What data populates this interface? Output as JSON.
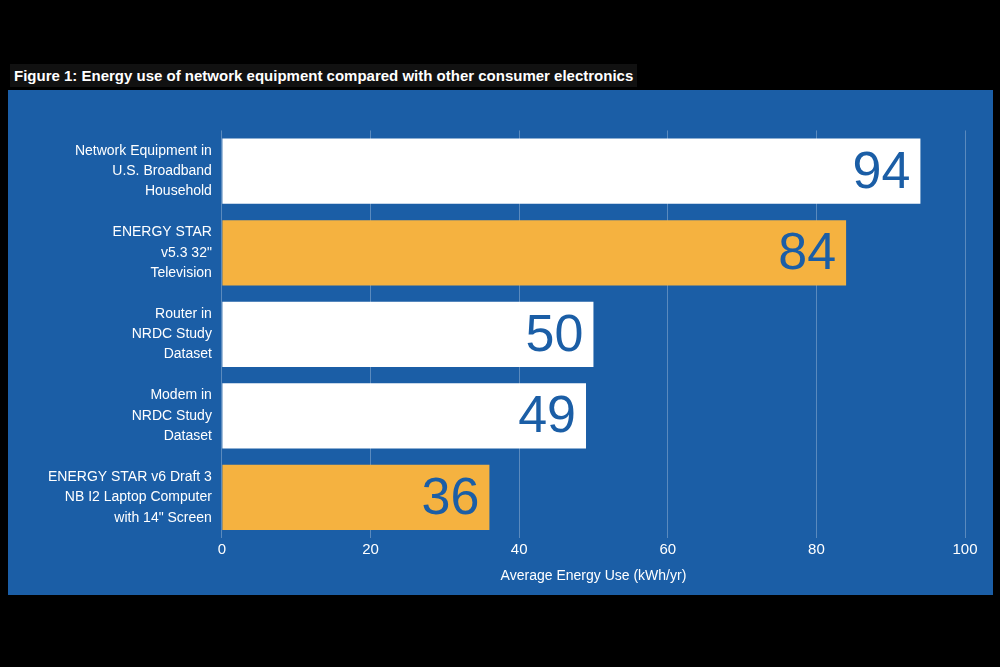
{
  "chart_data": {
    "type": "bar",
    "title": "Figure 1: Energy use of network equipment compared with other consumer electronics",
    "orientation": "horizontal",
    "categories": [
      [
        "Network Equipment in",
        "U.S. Broadband",
        "Household"
      ],
      [
        "ENERGY STAR",
        "v5.3 32\"",
        "Television"
      ],
      [
        "Router in",
        "NRDC Study",
        "Dataset"
      ],
      [
        "Modem in",
        "NRDC Study",
        "Dataset"
      ],
      [
        "ENERGY STAR v6 Draft 3",
        "NB I2 Laptop Computer",
        "with 14\" Screen"
      ]
    ],
    "values": [
      94,
      84,
      50,
      49,
      36
    ],
    "colors": [
      "#ffffff",
      "#f5b240",
      "#ffffff",
      "#ffffff",
      "#f5b240"
    ],
    "xlabel": "Average Energy Use (kWh/yr)",
    "xlim": [
      0,
      100
    ],
    "xticks": [
      0,
      20,
      40,
      60,
      80,
      100
    ],
    "grid": true,
    "data_labels": true
  }
}
